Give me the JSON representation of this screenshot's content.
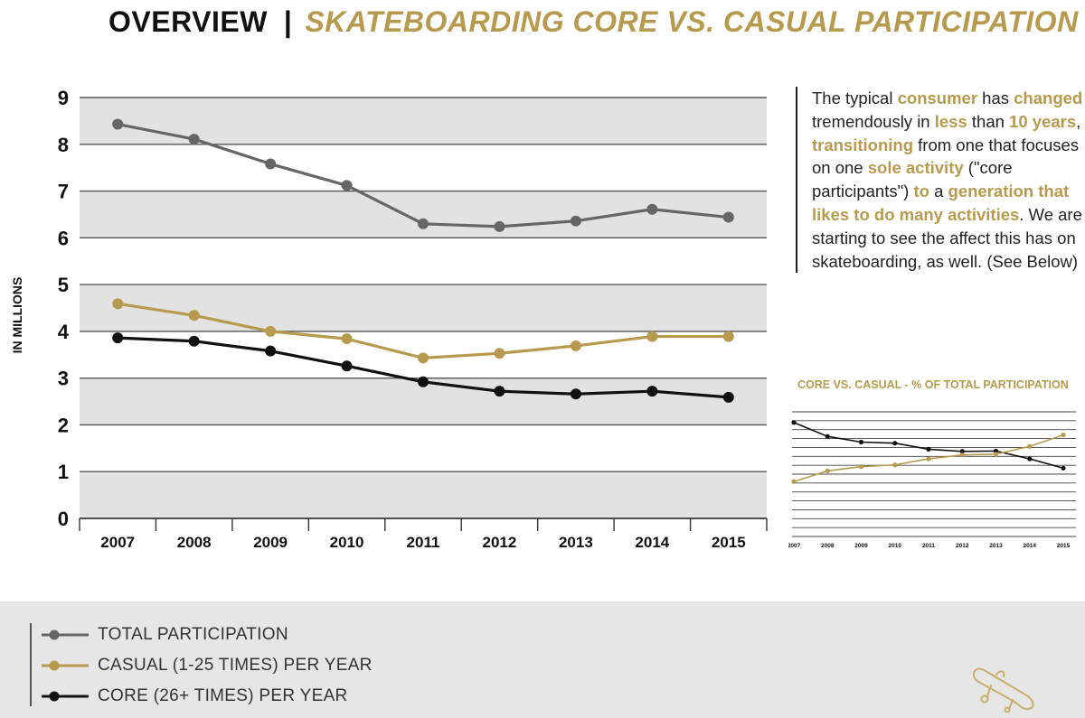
{
  "header": {
    "title_main": "OVERVIEW",
    "separator": "|",
    "title_sub": "SKATEBOARDING CORE VS. CASUAL PARTICIPATION"
  },
  "description": [
    {
      "text": "The typical ",
      "hl": false
    },
    {
      "text": "consumer",
      "hl": true
    },
    {
      "text": " has ",
      "hl": false
    },
    {
      "text": "changed",
      "hl": true
    },
    {
      "text": " tremendously in ",
      "hl": false
    },
    {
      "text": "less",
      "hl": true
    },
    {
      "text": " than ",
      "hl": false
    },
    {
      "text": "10 years",
      "hl": true
    },
    {
      "text": ", ",
      "hl": false
    },
    {
      "text": "transitioning",
      "hl": true
    },
    {
      "text": " from one that focuses on one ",
      "hl": false
    },
    {
      "text": "sole activity",
      "hl": true
    },
    {
      "text": " (\"core participants\") ",
      "hl": false
    },
    {
      "text": "to",
      "hl": true
    },
    {
      "text": " a ",
      "hl": false
    },
    {
      "text": "generation that likes to do many activities",
      "hl": true
    },
    {
      "text": ". We are starting to see the affect this has on skateboarding, as well. (See Below)",
      "hl": false
    }
  ],
  "legend": {
    "total": "TOTAL PARTICIPATION",
    "casual": "CASUAL (1-25 TIMES) PER YEAR",
    "core": "CORE (26+ TIMES) PER YEAR"
  },
  "colors": {
    "total": "#666666",
    "casual": "#b89a4e",
    "core": "#111111",
    "band": "#e2e2e2",
    "gridline": "#555555"
  },
  "chart_data": [
    {
      "type": "line",
      "title": "",
      "xlabel": "",
      "ylabel": "IN MILLIONS",
      "ylim": [
        0,
        9
      ],
      "yticks": [
        "0",
        "1",
        "2",
        "3",
        "4",
        "5",
        "6",
        "7",
        "8",
        "9"
      ],
      "categories": [
        "2007",
        "2008",
        "2009",
        "2010",
        "2011",
        "2012",
        "2013",
        "2014",
        "2015"
      ],
      "series": [
        {
          "key": "total",
          "name": "TOTAL PARTICIPATION",
          "values": [
            8.43,
            8.11,
            7.58,
            7.12,
            6.3,
            6.24,
            6.36,
            6.61,
            6.44
          ]
        },
        {
          "key": "casual",
          "name": "CASUAL (1-25 TIMES) PER YEAR",
          "values": [
            4.59,
            4.34,
            4.0,
            3.84,
            3.43,
            3.53,
            3.69,
            3.89,
            3.89
          ]
        },
        {
          "key": "core",
          "name": "CORE (26+ TIMES) PER YEAR",
          "values": [
            3.86,
            3.79,
            3.58,
            3.26,
            2.92,
            2.72,
            2.66,
            2.72,
            2.59
          ]
        }
      ]
    },
    {
      "type": "line",
      "title": "CORE VS. CASUAL - % OF TOTAL PARTICIPATION",
      "categories": [
        "2007",
        "2008",
        "2009",
        "2010",
        "2011",
        "2012",
        "2013",
        "2014",
        "2015"
      ],
      "ylim": [
        30,
        65
      ],
      "series": [
        {
          "key": "core",
          "name": "CORE",
          "values": [
            62.0,
            58.1,
            56.5,
            56.2,
            54.5,
            53.9,
            54.0,
            51.8,
            49.2
          ]
        },
        {
          "key": "casual",
          "name": "CASUAL",
          "values": [
            45.4,
            48.4,
            49.6,
            50.1,
            51.8,
            52.9,
            53.1,
            55.3,
            58.5
          ]
        }
      ]
    }
  ]
}
